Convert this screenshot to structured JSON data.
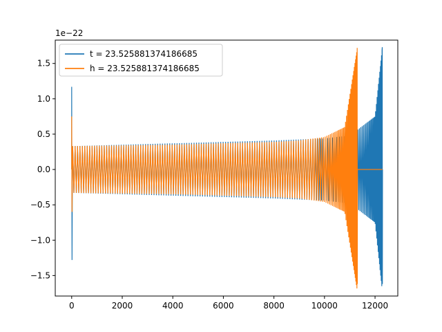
{
  "chart_data": {
    "type": "line",
    "title": "",
    "xlabel": "",
    "ylabel": "",
    "y_offset_label": "1e−22",
    "xlim": [
      -650,
      12900
    ],
    "ylim": [
      -1.79,
      1.83
    ],
    "x_ticks": [
      0,
      2000,
      4000,
      6000,
      8000,
      10000,
      12000
    ],
    "x_tick_labels": [
      "0",
      "2000",
      "4000",
      "6000",
      "8000",
      "10000",
      "12000"
    ],
    "y_ticks": [
      -1.5,
      -1.0,
      -0.5,
      0.0,
      0.5,
      1.0,
      1.5
    ],
    "y_tick_labels": [
      "−1.5",
      "−1.0",
      "−0.5",
      "0.0",
      "0.5",
      "1.0",
      "1.5"
    ],
    "grid": false,
    "legend": {
      "placement": "top-left"
    },
    "series": [
      {
        "name": "t = 23.525881374186685",
        "color": "#1f77b4",
        "x_start": 0,
        "x_end": 12290,
        "merger_x": 12290,
        "start_spike": {
          "max": 1.17,
          "min": -1.28
        },
        "envelope": [
          [
            0,
            0.33
          ],
          [
            2000,
            0.35
          ],
          [
            4000,
            0.37
          ],
          [
            6000,
            0.39
          ],
          [
            8000,
            0.41
          ],
          [
            10000,
            0.44
          ],
          [
            11000,
            0.48
          ],
          [
            11300,
            0.56
          ],
          [
            12000,
            0.75
          ],
          [
            12290,
            1.73
          ]
        ],
        "min_at_merger": -1.62
      },
      {
        "name": "h = 23.525881374186685",
        "color": "#ff7f0e",
        "x_start": 0,
        "x_end": 12290,
        "merger_x": 11300,
        "flat_zero_after": 11300,
        "start_spike": {
          "max": 0.75,
          "min": -0.6
        },
        "envelope": [
          [
            0,
            0.33
          ],
          [
            2000,
            0.34
          ],
          [
            4000,
            0.35
          ],
          [
            6000,
            0.37
          ],
          [
            8000,
            0.39
          ],
          [
            9000,
            0.41
          ],
          [
            10000,
            0.46
          ],
          [
            10800,
            0.6
          ],
          [
            11300,
            1.72
          ]
        ],
        "min_at_merger": -1.62
      }
    ]
  }
}
